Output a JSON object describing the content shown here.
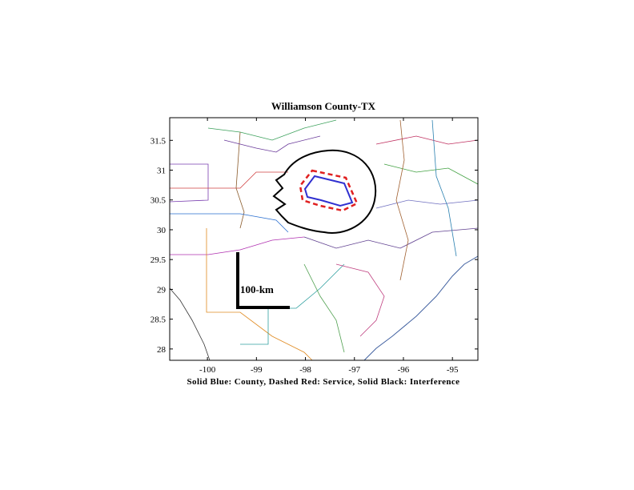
{
  "map": {
    "title": "Williamson County-TX",
    "caption": "Solid Blue: County, Dashed Red: Service, Solid Black: Interference",
    "scale_label": "100-km",
    "xlim": [
      -100.77,
      -94.48
    ],
    "ylim": [
      27.81,
      31.88
    ],
    "xticks": [
      -100,
      -99,
      -98,
      -97,
      -96,
      -95
    ],
    "yticks": [
      28,
      28.5,
      29,
      29.5,
      30,
      30.5,
      31,
      31.5
    ]
  }
}
